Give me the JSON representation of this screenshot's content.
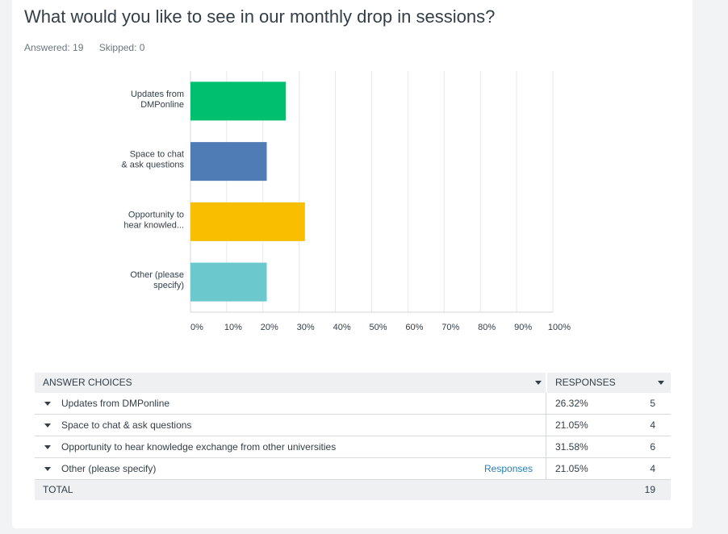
{
  "question": {
    "title": "What would you like to see in our monthly drop in sessions?",
    "answered": "Answered: 19",
    "skipped": "Skipped: 0"
  },
  "chart_data": {
    "type": "bar",
    "orientation": "horizontal",
    "categories": [
      [
        "Updates from",
        "DMPonline"
      ],
      [
        "Space to chat",
        "& ask questions"
      ],
      [
        "Opportunity to",
        "hear knowled..."
      ],
      [
        "Other (please",
        "specify)"
      ]
    ],
    "values": [
      26.32,
      21.05,
      31.58,
      21.05
    ],
    "colors": [
      "#00bf6f",
      "#507cb6",
      "#f9be00",
      "#6bc8cd"
    ],
    "xlim": [
      0,
      100
    ],
    "xticks": [
      "0%",
      "10%",
      "20%",
      "30%",
      "40%",
      "50%",
      "60%",
      "70%",
      "80%",
      "90%",
      "100%"
    ],
    "grid": true,
    "title": "",
    "xlabel": "",
    "ylabel": ""
  },
  "table": {
    "header_choices": "ANSWER CHOICES",
    "header_responses": "RESPONSES",
    "rows": [
      {
        "label": "Updates from DMPonline",
        "pct": "26.32%",
        "count": "5",
        "link": ""
      },
      {
        "label": "Space to chat & ask questions",
        "pct": "21.05%",
        "count": "4",
        "link": ""
      },
      {
        "label": "Opportunity to hear knowledge exchange from other universities",
        "pct": "31.58%",
        "count": "6",
        "link": ""
      },
      {
        "label": "Other (please specify)",
        "pct": "21.05%",
        "count": "4",
        "link": "Responses"
      }
    ],
    "total_label": "TOTAL",
    "total_value": "19"
  }
}
